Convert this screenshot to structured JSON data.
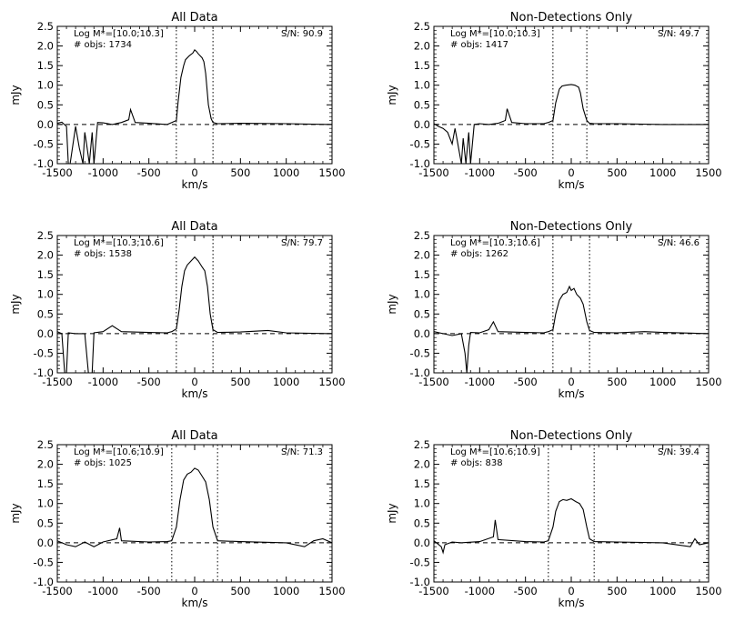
{
  "figure": {
    "xlabel": "km/s",
    "ylabel": "mJy",
    "xlim": [
      -1500,
      1500
    ],
    "ylim": [
      -1.0,
      2.5
    ],
    "xticks": [
      -1500,
      -1000,
      -500,
      0,
      500,
      1000,
      1500
    ],
    "yticks": [
      "2.5",
      "2.0",
      "1.5",
      "1.0",
      "0.5",
      "0.0",
      "-0.5",
      "-1.0"
    ],
    "line_color": "#000000"
  },
  "chart_data": [
    {
      "type": "line",
      "title": "All Data",
      "mass_label": "Log M*=[10.0;10.3]",
      "objs_label": "# objs: 1734",
      "sn_label": "S/N: 90.9",
      "xlim": [
        -1500,
        1500
      ],
      "ylim": [
        -1.0,
        2.5
      ],
      "vlines": [
        -200,
        200
      ],
      "hline": 0.0,
      "x": [
        -1500,
        -1450,
        -1400,
        -1380,
        -1360,
        -1300,
        -1260,
        -1220,
        -1200,
        -1180,
        -1150,
        -1120,
        -1100,
        -1060,
        -1000,
        -900,
        -800,
        -720,
        -700,
        -650,
        -500,
        -300,
        -250,
        -200,
        -180,
        -150,
        -120,
        -100,
        -60,
        -20,
        0,
        20,
        40,
        80,
        100,
        120,
        150,
        180,
        200,
        250,
        500,
        1000,
        1500
      ],
      "y": [
        0.03,
        0.06,
        -0.05,
        -1.0,
        -1.0,
        -0.05,
        -0.6,
        -1.0,
        -0.2,
        -0.5,
        -1.0,
        -0.2,
        -1.0,
        0.05,
        0.04,
        0.0,
        0.05,
        0.12,
        0.38,
        0.05,
        0.03,
        0.0,
        0.05,
        0.1,
        0.6,
        1.2,
        1.5,
        1.65,
        1.75,
        1.82,
        1.9,
        1.86,
        1.8,
        1.7,
        1.6,
        1.3,
        0.5,
        0.15,
        0.05,
        0.02,
        0.03,
        0.02,
        0.0
      ]
    },
    {
      "type": "line",
      "title": "Non-Detections Only",
      "mass_label": "Log M*=[10.0;10.3]",
      "objs_label": "# objs: 1417",
      "sn_label": "S/N: 49.7",
      "xlim": [
        -1500,
        1500
      ],
      "ylim": [
        -1.0,
        2.5
      ],
      "vlines": [
        -200,
        170
      ],
      "hline": 0.0,
      "x": [
        -1500,
        -1450,
        -1400,
        -1350,
        -1300,
        -1270,
        -1250,
        -1200,
        -1180,
        -1150,
        -1120,
        -1100,
        -1060,
        -1000,
        -900,
        -800,
        -720,
        -700,
        -650,
        -500,
        -300,
        -250,
        -200,
        -170,
        -130,
        -100,
        -60,
        0,
        40,
        80,
        100,
        130,
        170,
        200,
        250,
        500,
        1000,
        1500
      ],
      "y": [
        0.02,
        -0.05,
        -0.1,
        -0.2,
        -0.5,
        -0.1,
        -0.35,
        -1.0,
        -0.35,
        -1.0,
        -0.2,
        -1.0,
        0.0,
        0.02,
        0.0,
        0.03,
        0.1,
        0.4,
        0.05,
        0.02,
        0.02,
        0.05,
        0.1,
        0.55,
        0.9,
        0.98,
        1.0,
        1.02,
        1.0,
        0.95,
        0.8,
        0.4,
        0.1,
        0.03,
        0.02,
        0.02,
        0.0,
        0.0
      ]
    },
    {
      "type": "line",
      "title": "All Data",
      "mass_label": "Log M*=[10.3;10.6]",
      "objs_label": "# objs: 1538",
      "sn_label": "S/N: 79.7",
      "xlim": [
        -1500,
        1500
      ],
      "ylim": [
        -1.0,
        2.5
      ],
      "vlines": [
        -200,
        200
      ],
      "hline": 0.0,
      "x": [
        -1500,
        -1450,
        -1420,
        -1400,
        -1380,
        -1300,
        -1200,
        -1160,
        -1140,
        -1120,
        -1100,
        -1000,
        -900,
        -800,
        -500,
        -300,
        -250,
        -200,
        -170,
        -140,
        -110,
        -80,
        -40,
        0,
        40,
        80,
        110,
        140,
        170,
        200,
        250,
        500,
        800,
        1000,
        1500
      ],
      "y": [
        0.05,
        0.0,
        -1.0,
        -1.0,
        0.02,
        0.0,
        0.0,
        -1.0,
        -1.0,
        -1.0,
        0.02,
        0.05,
        0.2,
        0.05,
        0.03,
        0.02,
        0.05,
        0.12,
        0.6,
        1.2,
        1.6,
        1.75,
        1.85,
        1.95,
        1.85,
        1.7,
        1.6,
        1.2,
        0.5,
        0.1,
        0.03,
        0.04,
        0.08,
        0.02,
        0.0
      ]
    },
    {
      "type": "line",
      "title": "Non-Detections Only",
      "mass_label": "Log M*=[10.3;10.6]",
      "objs_label": "# objs: 1262",
      "sn_label": "S/N: 46.6",
      "xlim": [
        -1500,
        1500
      ],
      "ylim": [
        -1.0,
        2.5
      ],
      "vlines": [
        -200,
        200
      ],
      "hline": 0.0,
      "x": [
        -1500,
        -1400,
        -1300,
        -1200,
        -1160,
        -1140,
        -1120,
        -1100,
        -1000,
        -900,
        -850,
        -800,
        -500,
        -300,
        -250,
        -200,
        -170,
        -130,
        -90,
        -50,
        -20,
        0,
        30,
        60,
        100,
        130,
        170,
        200,
        250,
        500,
        800,
        1000,
        1500
      ],
      "y": [
        0.05,
        0.0,
        -0.05,
        0.0,
        -0.5,
        -1.0,
        -0.3,
        0.03,
        0.02,
        0.1,
        0.3,
        0.05,
        0.03,
        0.02,
        0.05,
        0.1,
        0.5,
        0.85,
        1.0,
        1.05,
        1.2,
        1.1,
        1.15,
        1.0,
        0.9,
        0.75,
        0.3,
        0.08,
        0.03,
        0.02,
        0.05,
        0.03,
        0.0
      ]
    },
    {
      "type": "line",
      "title": "All Data",
      "mass_label": "Log M*=[10.6;10.9]",
      "objs_label": "# objs: 1025",
      "sn_label": "S/N: 71.3",
      "xlim": [
        -1500,
        1500
      ],
      "ylim": [
        -1.0,
        2.5
      ],
      "vlines": [
        -250,
        250
      ],
      "hline": 0.0,
      "x": [
        -1500,
        -1400,
        -1300,
        -1200,
        -1100,
        -1000,
        -850,
        -820,
        -800,
        -500,
        -300,
        -250,
        -200,
        -160,
        -120,
        -80,
        -40,
        0,
        40,
        80,
        120,
        160,
        200,
        250,
        500,
        1000,
        1200,
        1300,
        1400,
        1500
      ],
      "y": [
        0.05,
        -0.05,
        -0.1,
        0.02,
        -0.1,
        0.02,
        0.1,
        0.38,
        0.05,
        0.02,
        0.03,
        0.05,
        0.4,
        1.1,
        1.6,
        1.75,
        1.8,
        1.9,
        1.85,
        1.7,
        1.55,
        1.1,
        0.4,
        0.05,
        0.03,
        0.0,
        -0.1,
        0.05,
        0.1,
        0.0
      ]
    },
    {
      "type": "line",
      "title": "Non-Detections Only",
      "mass_label": "Log M*=[10.6;10.9]",
      "objs_label": "# objs: 838",
      "sn_label": "S/N: 39.4",
      "xlim": [
        -1500,
        1500
      ],
      "ylim": [
        -1.0,
        2.5
      ],
      "vlines": [
        -250,
        250
      ],
      "hline": 0.0,
      "x": [
        -1500,
        -1420,
        -1400,
        -1380,
        -1300,
        -1200,
        -1000,
        -850,
        -830,
        -800,
        -500,
        -300,
        -250,
        -200,
        -170,
        -130,
        -90,
        -50,
        0,
        50,
        90,
        130,
        170,
        200,
        250,
        500,
        1000,
        1300,
        1350,
        1400,
        1500
      ],
      "y": [
        0.05,
        -0.1,
        -0.25,
        -0.05,
        0.02,
        0.0,
        0.03,
        0.15,
        0.58,
        0.08,
        0.03,
        0.02,
        0.05,
        0.4,
        0.8,
        1.05,
        1.1,
        1.08,
        1.12,
        1.05,
        1.0,
        0.85,
        0.4,
        0.1,
        0.03,
        0.02,
        0.0,
        -0.1,
        0.1,
        -0.05,
        0.0
      ]
    }
  ]
}
